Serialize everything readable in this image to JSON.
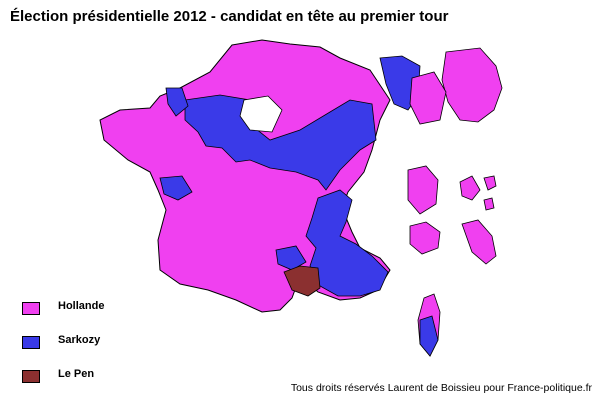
{
  "title": "Élection présidentielle 2012 - candidat en tête au premier tour",
  "legend": [
    {
      "label": "Hollande",
      "color": "#f040f0"
    },
    {
      "label": "Sarkozy",
      "color": "#3a3ae8"
    },
    {
      "label": "Le Pen",
      "color": "#8b3030"
    }
  ],
  "credit": "Tous droits réservés Laurent de Boissieu pour France-politique.fr",
  "colors": {
    "hollande": "#f040f0",
    "sarkozy": "#3a3ae8",
    "lepen": "#8b3030",
    "border": "#000000",
    "background": "#ffffff"
  }
}
